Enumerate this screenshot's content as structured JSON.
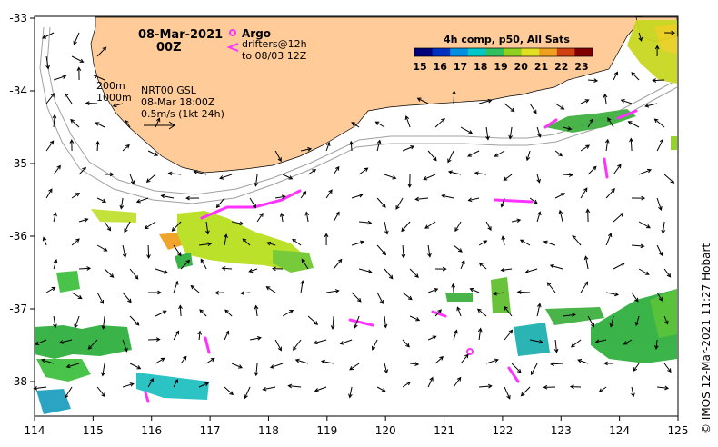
{
  "header": {
    "date": "08-Mar-2021",
    "time": "00Z"
  },
  "argo": {
    "label": "Argo",
    "drifters_line1": "drifters@12h",
    "drifters_line2": "to 08/03 12Z",
    "marker_color": "#ff00ff"
  },
  "legend_left": {
    "depth_1": "200m",
    "depth_2": "1000m",
    "source": "NRT00 GSL",
    "datetime": "08-Mar 18:00Z",
    "vector_scale": "0.5m/s (1kt 24h)"
  },
  "colorbar": {
    "title": "4h comp, p50, All Sats",
    "ticks": [
      "15",
      "16",
      "17",
      "18",
      "19",
      "20",
      "21",
      "22",
      "23"
    ],
    "colors": [
      "#00007a",
      "#0030c0",
      "#0090e0",
      "#00c8c8",
      "#30c060",
      "#90d020",
      "#e0e020",
      "#f0a020",
      "#d04010",
      "#800000"
    ]
  },
  "axes": {
    "lon_ticks": [
      "114",
      "115",
      "116",
      "117",
      "118",
      "119",
      "120",
      "121",
      "122",
      "123",
      "124",
      "125"
    ],
    "lat_ticks": [
      "-33",
      "-34",
      "-35",
      "-36",
      "-37",
      "-38"
    ]
  },
  "credit": "© IMOS 12-Mar-2021 11:27 Hobart",
  "colors": {
    "land": "#ffcc99",
    "ocean": "#ffffff",
    "isobath": "#9a9a9a",
    "argo": "#ff33ff"
  }
}
